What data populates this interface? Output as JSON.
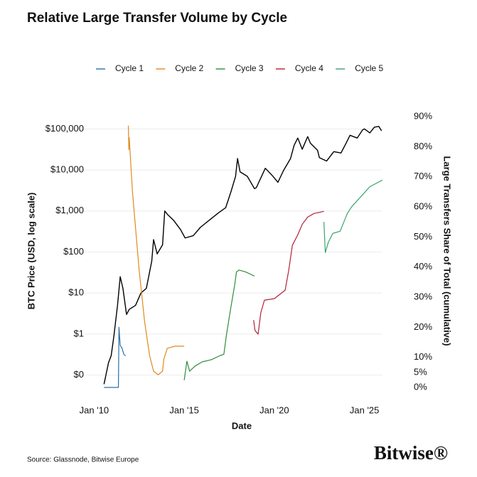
{
  "chart_data": {
    "type": "line",
    "title": "Relative Large Transfer Volume by Cycle",
    "ylabel": "BTC Price (USD, log scale)",
    "y2label": "Large Transfers Share of Total (cumulative)",
    "xlabel": "Date",
    "source": "Source: Glassnode, Bitwise Europe",
    "ylog": true,
    "grid": true,
    "legend": "top",
    "xlim": [
      2009,
      2026
    ],
    "xticks": [
      {
        "value": 2010,
        "label": "Jan '10"
      },
      {
        "value": 2015,
        "label": "Jan '15"
      },
      {
        "value": 2020,
        "label": "Jan '20"
      },
      {
        "value": 2025,
        "label": "Jan '25"
      }
    ],
    "ylim": [
      0.05,
      200000
    ],
    "yticks": [
      {
        "value": 0.1,
        "label": "$0"
      },
      {
        "value": 1,
        "label": "$1"
      },
      {
        "value": 10,
        "label": "$10"
      },
      {
        "value": 100,
        "label": "$100"
      },
      {
        "value": 1000,
        "label": "$1,000"
      },
      {
        "value": 10000,
        "label": "$10,000"
      },
      {
        "value": 100000,
        "label": "$100,000"
      }
    ],
    "y2lim": [
      0,
      90
    ],
    "y2ticks": [
      {
        "value": 0,
        "label": "0%"
      },
      {
        "value": 5,
        "label": "5%"
      },
      {
        "value": 10,
        "label": "10%"
      },
      {
        "value": 20,
        "label": "20%"
      },
      {
        "value": 30,
        "label": "30%"
      },
      {
        "value": 40,
        "label": "40%"
      },
      {
        "value": 50,
        "label": "50%"
      },
      {
        "value": 60,
        "label": "60%"
      },
      {
        "value": 70,
        "label": "70%"
      },
      {
        "value": 80,
        "label": "80%"
      },
      {
        "value": 90,
        "label": "90%"
      }
    ],
    "series": [
      {
        "color": "#000000",
        "axis": "y",
        "x": [
          2010.55,
          2010.8,
          2010.95,
          2011.1,
          2011.3,
          2011.45,
          2011.6,
          2011.8,
          2011.95,
          2012.3,
          2012.6,
          2012.9,
          2013.2,
          2013.3,
          2013.5,
          2013.8,
          2013.92,
          2014.1,
          2014.4,
          2014.8,
          2015.05,
          2015.5,
          2015.9,
          2016.5,
          2016.9,
          2017.3,
          2017.6,
          2017.85,
          2017.96,
          2018.1,
          2018.5,
          2018.9,
          2019.0,
          2019.5,
          2019.9,
          2020.2,
          2020.5,
          2020.9,
          2021.1,
          2021.3,
          2021.55,
          2021.85,
          2022.0,
          2022.4,
          2022.5,
          2022.9,
          2023.3,
          2023.7,
          2023.95,
          2024.2,
          2024.6,
          2024.9,
          2025.0,
          2025.3,
          2025.55,
          2025.8,
          2025.95
        ],
        "values": [
          0.06,
          0.2,
          0.3,
          0.9,
          5,
          25,
          13,
          3,
          4,
          5,
          10,
          13,
          60,
          200,
          90,
          150,
          1000,
          800,
          600,
          350,
          220,
          250,
          400,
          650,
          900,
          1200,
          3000,
          7000,
          19000,
          9000,
          7000,
          3500,
          3700,
          11000,
          7200,
          5000,
          9500,
          19000,
          40000,
          60000,
          32000,
          65000,
          45000,
          30000,
          20000,
          16500,
          28000,
          26000,
          42000,
          70000,
          60000,
          95000,
          100000,
          80000,
          110000,
          115000,
          90000
        ]
      },
      {
        "name": "Cycle 1",
        "color": "#2b6fa8",
        "axis": "y2",
        "x": [
          2010.55,
          2011.35,
          2011.38,
          2011.45,
          2011.55,
          2011.65,
          2011.75
        ],
        "values": [
          0,
          0,
          20,
          14,
          13,
          11,
          10.5
        ]
      },
      {
        "name": "Cycle 2",
        "color": "#e08a1e",
        "axis": "y2",
        "x": [
          2011.9,
          2011.93,
          2011.95,
          2012.13,
          2012.5,
          2012.8,
          2013.08,
          2013.3,
          2013.55,
          2013.8,
          2013.87,
          2014.06,
          2014.5,
          2015.0
        ],
        "values": [
          87,
          79,
          83,
          65,
          39,
          22,
          10.6,
          5.4,
          4.2,
          5.4,
          9.4,
          13,
          13.7,
          13.7
        ]
      },
      {
        "name": "Cycle 3",
        "color": "#2e8b3a",
        "axis": "y2",
        "x": [
          2015.0,
          2015.15,
          2015.3,
          2015.6,
          2016.0,
          2016.5,
          2017.0,
          2017.2,
          2017.35,
          2017.6,
          2017.8,
          2017.9,
          2018.05,
          2018.4,
          2018.9
        ],
        "values": [
          2.4,
          8.7,
          5.4,
          7.1,
          8.5,
          9.2,
          10.6,
          11,
          17.7,
          27,
          34,
          38.4,
          39,
          38.4,
          37
        ]
      },
      {
        "name": "Cycle 4",
        "color": "#b22234",
        "axis": "y2",
        "x": [
          2018.85,
          2018.93,
          2019.1,
          2019.25,
          2019.45,
          2020.0,
          2020.6,
          2020.8,
          2021.0,
          2021.3,
          2021.55,
          2021.85,
          2022.2,
          2022.75
        ],
        "values": [
          22.4,
          18.9,
          17.7,
          24.8,
          29.0,
          29.5,
          32.3,
          38.9,
          47.2,
          50.7,
          54.2,
          56.6,
          57.8,
          58.5
        ]
      },
      {
        "name": "Cycle 5",
        "color": "#3aa36b",
        "axis": "y2",
        "x": [
          2022.75,
          2022.83,
          2023.0,
          2023.25,
          2023.65,
          2024.05,
          2024.3,
          2024.85,
          2025.3,
          2026.0
        ],
        "values": [
          55,
          44.8,
          48.3,
          51.2,
          51.9,
          57.8,
          60.1,
          63.7,
          66.7,
          68.9
        ]
      }
    ]
  },
  "brand": "Bitwise®"
}
